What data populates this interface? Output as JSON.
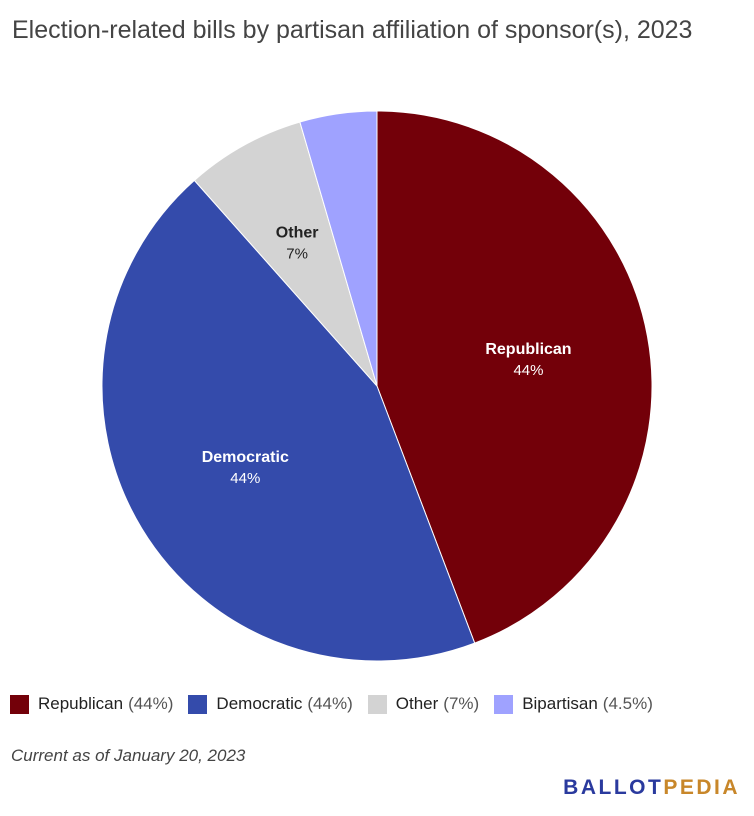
{
  "title": "Election-related bills by partisan affiliation of sponsor(s), 2023",
  "chart_data": {
    "type": "pie",
    "title": "Election-related bills by partisan affiliation of sponsor(s), 2023",
    "slices": [
      {
        "name": "Republican",
        "value": 44,
        "label": "44%",
        "legend_pct": "(44%)",
        "color": "#730009",
        "show_label": true,
        "label_color": "#ffffff"
      },
      {
        "name": "Democratic",
        "value": 44,
        "label": "44%",
        "legend_pct": "(44%)",
        "color": "#344bab",
        "show_label": true,
        "label_color": "#ffffff"
      },
      {
        "name": "Other",
        "value": 7,
        "label": "7%",
        "legend_pct": "(7%)",
        "color": "#d3d3d3",
        "show_label": true,
        "label_color": "#222222"
      },
      {
        "name": "Bipartisan",
        "value": 4.5,
        "label": "4.5%",
        "legend_pct": "(4.5%)",
        "color": "#9fa2ff",
        "show_label": false,
        "label_color": "#222222"
      }
    ],
    "legend_placement": "bottom"
  },
  "footnote": "Current as of January 20, 2023",
  "logo": {
    "part1": "BALLOT",
    "part2": "PEDIA",
    "color1": "#2a3a9e",
    "color2": "#c8872a"
  }
}
